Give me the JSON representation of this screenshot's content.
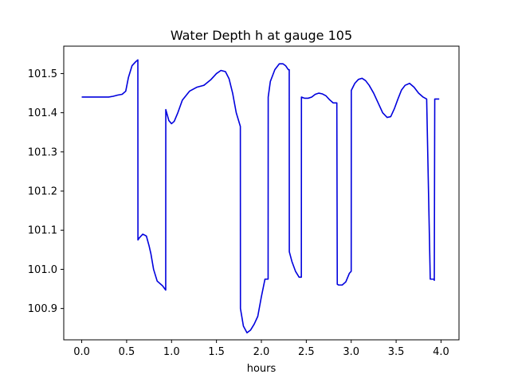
{
  "chart_data": {
    "type": "line",
    "title": "Water Depth h at gauge 105",
    "xlabel": "hours",
    "ylabel": "",
    "xlim": [
      -0.2,
      4.2
    ],
    "ylim": [
      100.82,
      101.57
    ],
    "xticks": [
      0.0,
      0.5,
      1.0,
      1.5,
      2.0,
      2.5,
      3.0,
      3.5,
      4.0
    ],
    "xtick_labels": [
      "0.0",
      "0.5",
      "1.0",
      "1.5",
      "2.0",
      "2.5",
      "3.0",
      "3.5",
      "4.0"
    ],
    "yticks": [
      100.9,
      101.0,
      101.1,
      101.2,
      101.3,
      101.4,
      101.5
    ],
    "ytick_labels": [
      "100.9",
      "101.0",
      "101.1",
      "101.2",
      "101.3",
      "101.4",
      "101.5"
    ],
    "grid": false,
    "legend": "none",
    "color": "#0000dd",
    "series": [
      {
        "name": "",
        "x": [
          0.0,
          0.1,
          0.2,
          0.3,
          0.35,
          0.4,
          0.45,
          0.49,
          0.52,
          0.56,
          0.6,
          0.625,
          0.626,
          0.64,
          0.68,
          0.72,
          0.75,
          0.77,
          0.8,
          0.84,
          0.9,
          0.935,
          0.936,
          0.97,
          1.0,
          1.03,
          1.07,
          1.12,
          1.2,
          1.28,
          1.36,
          1.44,
          1.5,
          1.55,
          1.6,
          1.64,
          1.68,
          1.72,
          1.766,
          1.767,
          1.8,
          1.84,
          1.88,
          1.92,
          1.96,
          2.0,
          2.04,
          2.06,
          2.075,
          2.076,
          2.1,
          2.15,
          2.2,
          2.24,
          2.27,
          2.3,
          2.31,
          2.311,
          2.34,
          2.38,
          2.42,
          2.445,
          2.446,
          2.48,
          2.52,
          2.56,
          2.6,
          2.64,
          2.68,
          2.72,
          2.76,
          2.8,
          2.84,
          2.845,
          2.86,
          2.9,
          2.94,
          2.98,
          3.0,
          3.001,
          3.04,
          3.08,
          3.12,
          3.16,
          3.2,
          3.25,
          3.3,
          3.35,
          3.4,
          3.44,
          3.48,
          3.52,
          3.56,
          3.6,
          3.65,
          3.7,
          3.75,
          3.8,
          3.84,
          3.88,
          3.92,
          3.925,
          3.93,
          3.96,
          3.965,
          3.97,
          3.98
        ],
        "y": [
          101.44,
          101.44,
          101.44,
          101.44,
          101.442,
          101.445,
          101.447,
          101.455,
          101.49,
          101.52,
          101.53,
          101.535,
          101.075,
          101.08,
          101.09,
          101.085,
          101.06,
          101.04,
          101.0,
          100.97,
          100.958,
          100.947,
          101.408,
          101.38,
          101.372,
          101.378,
          101.4,
          101.432,
          101.455,
          101.465,
          101.47,
          101.485,
          101.5,
          101.508,
          101.505,
          101.487,
          101.45,
          101.4,
          101.365,
          100.9,
          100.855,
          100.838,
          100.845,
          100.86,
          100.88,
          100.93,
          100.975,
          100.975,
          100.975,
          101.44,
          101.48,
          101.51,
          101.525,
          101.525,
          101.52,
          101.51,
          101.51,
          101.045,
          101.02,
          100.995,
          100.98,
          100.98,
          101.44,
          101.437,
          101.437,
          101.44,
          101.447,
          101.45,
          101.448,
          101.443,
          101.433,
          101.425,
          101.425,
          100.962,
          100.96,
          100.96,
          100.968,
          100.99,
          100.995,
          101.457,
          101.475,
          101.485,
          101.488,
          101.482,
          101.47,
          101.45,
          101.425,
          101.4,
          101.388,
          101.39,
          101.41,
          101.435,
          101.458,
          101.47,
          101.475,
          101.465,
          101.45,
          101.44,
          101.435,
          100.975,
          100.975,
          100.972,
          101.435,
          101.435,
          101.435,
          101.435,
          101.435
        ]
      }
    ]
  }
}
